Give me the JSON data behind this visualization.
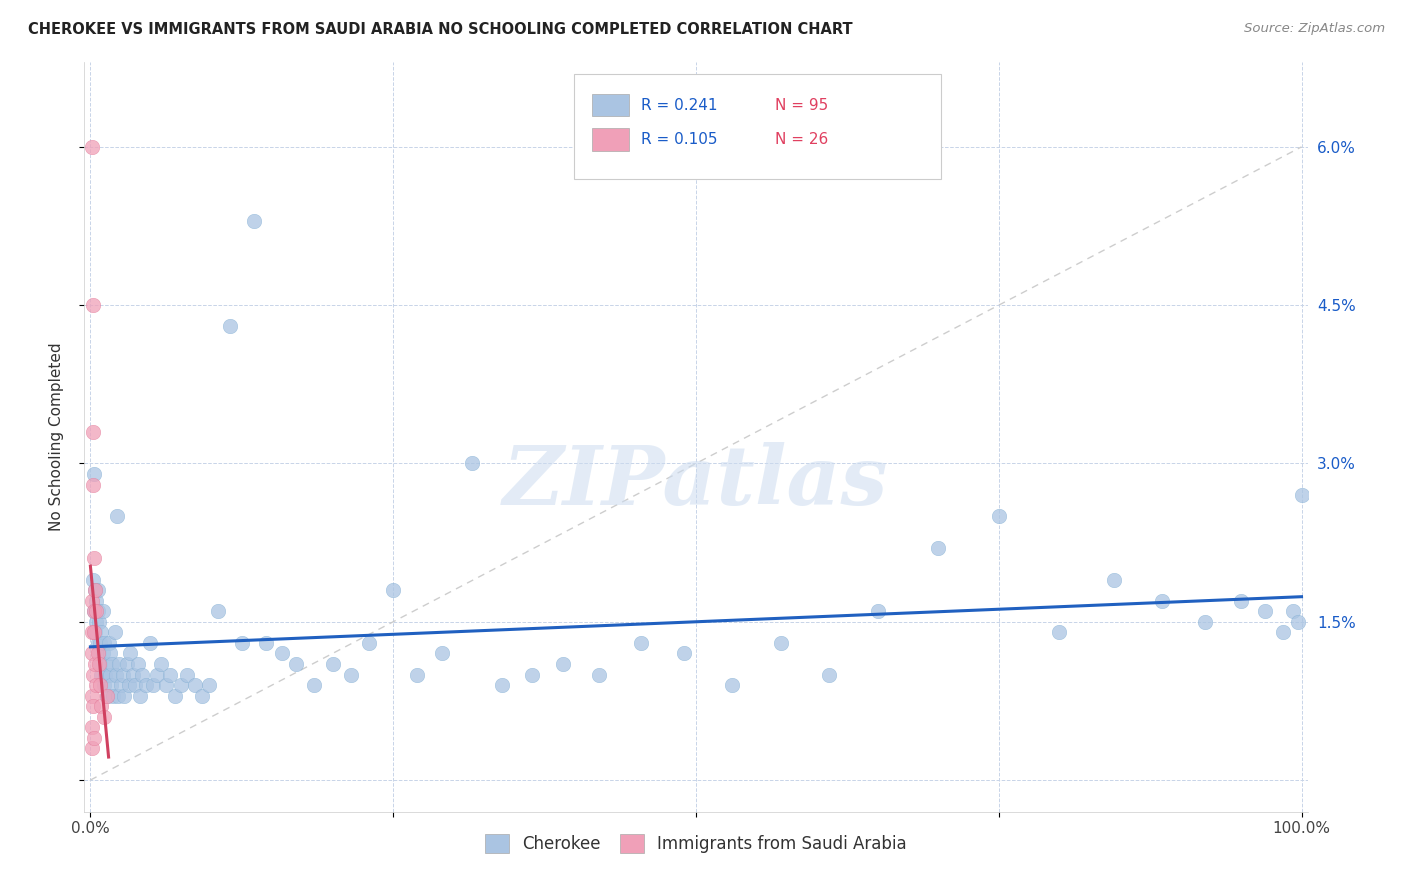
{
  "title": "CHEROKEE VS IMMIGRANTS FROM SAUDI ARABIA NO SCHOOLING COMPLETED CORRELATION CHART",
  "source": "Source: ZipAtlas.com",
  "ylabel": "No Schooling Completed",
  "cherokee_R": "0.241",
  "cherokee_N": "95",
  "saudi_R": "0.105",
  "saudi_N": "26",
  "cherokee_color": "#aac4e2",
  "cherokee_edge_color": "#7aaad0",
  "cherokee_line_color": "#2060c0",
  "saudi_color": "#f0a0b8",
  "saudi_edge_color": "#e07090",
  "saudi_line_color": "#d04060",
  "ref_line_color": "#c8c8c8",
  "background_color": "#ffffff",
  "grid_color": "#c8d4e8",
  "legend_color": "#1a5cc8",
  "watermark_color": "#ccdcf0",
  "cherokee_x": [
    0.002,
    0.003,
    0.004,
    0.004,
    0.005,
    0.005,
    0.006,
    0.006,
    0.006,
    0.007,
    0.007,
    0.008,
    0.008,
    0.009,
    0.009,
    0.01,
    0.01,
    0.011,
    0.011,
    0.012,
    0.013,
    0.014,
    0.015,
    0.016,
    0.016,
    0.017,
    0.018,
    0.019,
    0.02,
    0.021,
    0.022,
    0.023,
    0.024,
    0.025,
    0.027,
    0.028,
    0.03,
    0.032,
    0.033,
    0.035,
    0.037,
    0.039,
    0.041,
    0.043,
    0.046,
    0.049,
    0.052,
    0.055,
    0.058,
    0.062,
    0.066,
    0.07,
    0.075,
    0.08,
    0.086,
    0.092,
    0.098,
    0.105,
    0.115,
    0.125,
    0.135,
    0.145,
    0.158,
    0.17,
    0.185,
    0.2,
    0.215,
    0.23,
    0.25,
    0.27,
    0.29,
    0.315,
    0.34,
    0.365,
    0.39,
    0.42,
    0.455,
    0.49,
    0.53,
    0.57,
    0.61,
    0.65,
    0.7,
    0.75,
    0.8,
    0.845,
    0.885,
    0.92,
    0.95,
    0.97,
    0.985,
    0.993,
    0.997,
    1.0,
    0.003
  ],
  "cherokee_y": [
    0.019,
    0.016,
    0.018,
    0.014,
    0.015,
    0.017,
    0.013,
    0.016,
    0.018,
    0.012,
    0.015,
    0.011,
    0.013,
    0.01,
    0.014,
    0.016,
    0.012,
    0.009,
    0.013,
    0.01,
    0.011,
    0.008,
    0.013,
    0.01,
    0.012,
    0.009,
    0.011,
    0.008,
    0.014,
    0.01,
    0.025,
    0.008,
    0.011,
    0.009,
    0.01,
    0.008,
    0.011,
    0.009,
    0.012,
    0.01,
    0.009,
    0.011,
    0.008,
    0.01,
    0.009,
    0.013,
    0.009,
    0.01,
    0.011,
    0.009,
    0.01,
    0.008,
    0.009,
    0.01,
    0.009,
    0.008,
    0.009,
    0.016,
    0.043,
    0.013,
    0.053,
    0.013,
    0.012,
    0.011,
    0.009,
    0.011,
    0.01,
    0.013,
    0.018,
    0.01,
    0.012,
    0.03,
    0.009,
    0.01,
    0.011,
    0.01,
    0.013,
    0.012,
    0.009,
    0.013,
    0.01,
    0.016,
    0.022,
    0.025,
    0.014,
    0.019,
    0.017,
    0.015,
    0.017,
    0.016,
    0.014,
    0.016,
    0.015,
    0.027,
    0.029
  ],
  "saudi_x": [
    0.001,
    0.001,
    0.001,
    0.001,
    0.001,
    0.001,
    0.001,
    0.002,
    0.002,
    0.002,
    0.002,
    0.002,
    0.003,
    0.003,
    0.003,
    0.003,
    0.004,
    0.004,
    0.005,
    0.005,
    0.006,
    0.007,
    0.008,
    0.009,
    0.011,
    0.014
  ],
  "saudi_y": [
    0.06,
    0.017,
    0.014,
    0.012,
    0.008,
    0.005,
    0.003,
    0.045,
    0.033,
    0.028,
    0.01,
    0.007,
    0.021,
    0.016,
    0.014,
    0.004,
    0.018,
    0.011,
    0.009,
    0.016,
    0.012,
    0.011,
    0.009,
    0.007,
    0.006,
    0.008
  ],
  "xlim": [
    -0.005,
    1.005
  ],
  "ylim": [
    -0.003,
    0.068
  ],
  "xticks": [
    0.0,
    0.25,
    0.5,
    0.75,
    1.0
  ],
  "yticks": [
    0.0,
    0.015,
    0.03,
    0.045,
    0.06
  ]
}
